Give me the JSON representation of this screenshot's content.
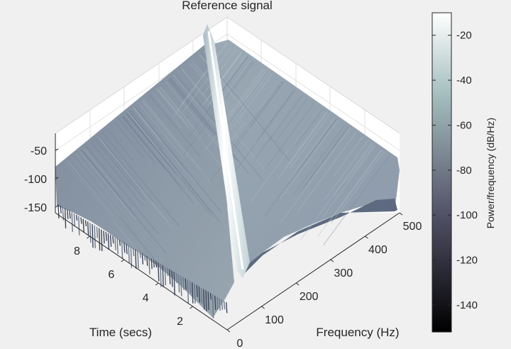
{
  "chart_data": {
    "type": "surface",
    "title": "Reference signal",
    "xlabel": "Frequency (Hz)",
    "ylabel": "Time (secs)",
    "zlabel": "",
    "colorbar_label": "Power/frequency (dB/Hz)",
    "colormap": "bone",
    "view": "3-D, azimuth looking from the low-frequency, low-time corner",
    "x_ticks": [
      0,
      100,
      200,
      300,
      400,
      500
    ],
    "y_ticks": [
      2,
      4,
      6,
      8
    ],
    "z_ticks": [
      -50,
      -100,
      -150
    ],
    "colorbar_ticks": [
      -20,
      -40,
      -60,
      -80,
      -100,
      -120,
      -140
    ],
    "xlim": [
      0,
      500
    ],
    "ylim": [
      0,
      10
    ],
    "zlim": [
      -160,
      -10
    ],
    "clim": [
      -152,
      -10
    ],
    "grid": true,
    "ridge": {
      "description": "linear chirp peak",
      "points": [
        {
          "time": 0.0,
          "frequency": 0,
          "power": -12
        },
        {
          "time": 10.0,
          "frequency": 500,
          "power": -12
        }
      ]
    },
    "background_floor": {
      "low_time_power": -130,
      "high_time_power": -82
    }
  }
}
